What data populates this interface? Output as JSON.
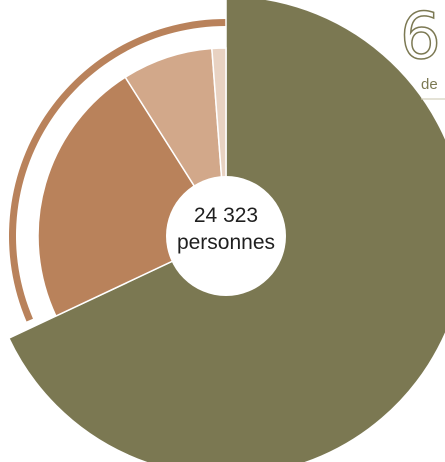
{
  "chart_data": {
    "type": "pie",
    "variant": "donut",
    "center_label": {
      "line1": "24 323",
      "line2": "personnes"
    },
    "slices": [
      {
        "value": 68.0,
        "color": "#7b7852"
      },
      {
        "value": 23.0,
        "color": "#b9825b"
      },
      {
        "value": 7.8,
        "color": "#d2a88a"
      },
      {
        "value": 1.2,
        "color": "#e8d2c2"
      }
    ],
    "outer_ring_color": "#b9825b"
  },
  "corner_annotation": {
    "digit": "6",
    "word": "de"
  }
}
